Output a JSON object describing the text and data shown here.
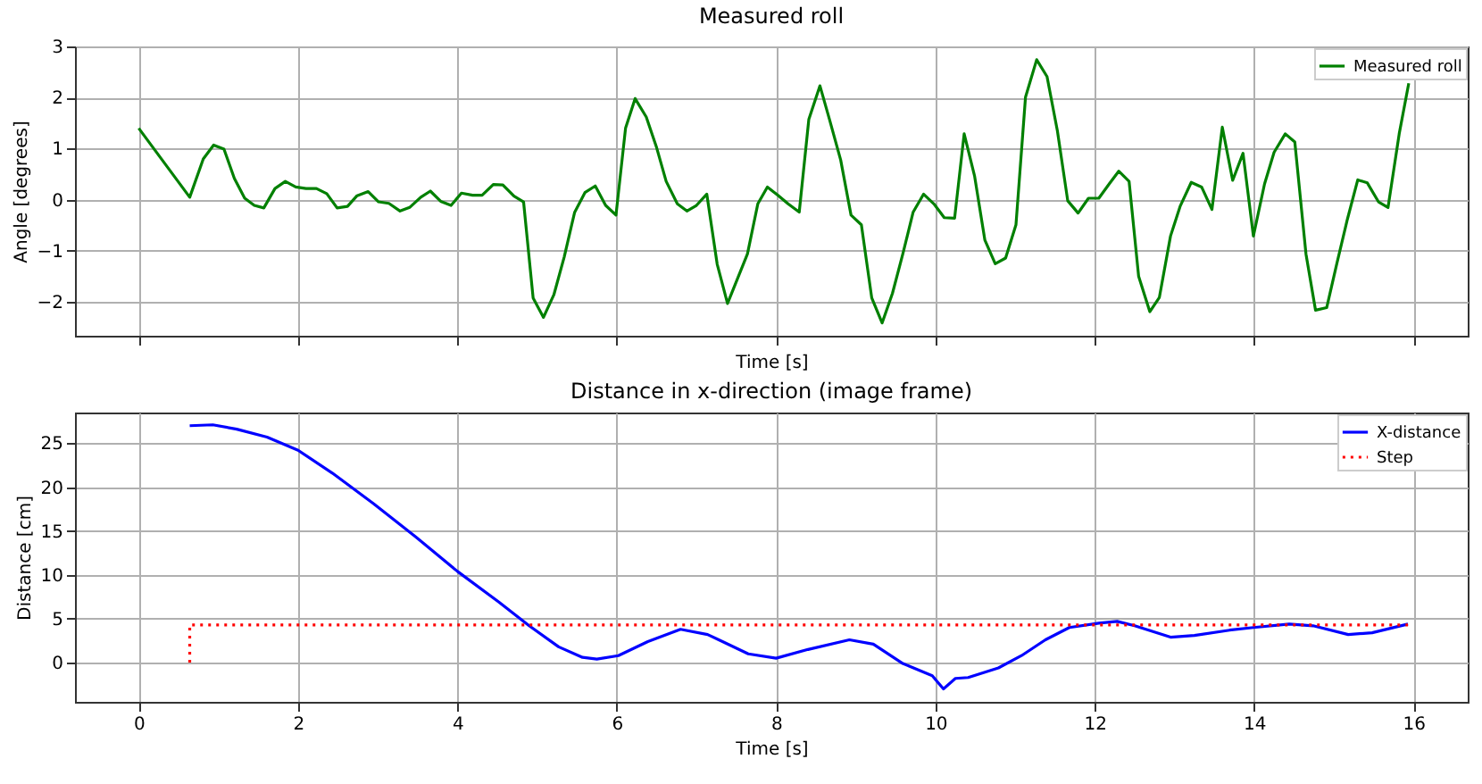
{
  "chart_data": [
    {
      "type": "line",
      "title": "Measured roll",
      "xlabel": "Time [s]",
      "ylabel": "Angle [degrees]",
      "xlim": [
        -0.8,
        16.68
      ],
      "ylim": [
        -2.66,
        3
      ],
      "xticks": [
        0,
        2,
        4,
        6,
        8,
        10,
        12,
        14,
        16
      ],
      "yticks": [
        -2,
        -1,
        0,
        1,
        2,
        3
      ],
      "tick_labels": "y",
      "grid": true,
      "legend": "top right",
      "marker": "none",
      "series": [
        {
          "name": "Measured roll",
          "color": "#008000",
          "line_style": "solid",
          "x": [
            0,
            0.64,
            0.81,
            0.94,
            1.07,
            1.2,
            1.33,
            1.45,
            1.57,
            1.71,
            1.84,
            1.97,
            2.1,
            2.23,
            2.36,
            2.49,
            2.62,
            2.74,
            2.88,
            3.01,
            3.14,
            3.28,
            3.4,
            3.54,
            3.66,
            3.79,
            3.92,
            4.05,
            4.19,
            4.31,
            4.45,
            4.57,
            4.71,
            4.83,
            4.95,
            5.08,
            5.21,
            5.34,
            5.47,
            5.6,
            5.73,
            5.86,
            5.99,
            6.11,
            6.23,
            6.37,
            6.5,
            6.62,
            6.76,
            6.88,
            7.0,
            7.13,
            7.26,
            7.39,
            7.64,
            7.77,
            7.89,
            8.02,
            8.15,
            8.29,
            8.41,
            8.55,
            8.67,
            8.81,
            8.94,
            9.07,
            9.2,
            9.33,
            9.46,
            9.59,
            9.72,
            9.85,
            9.98,
            10.11,
            10.24,
            10.36,
            10.49,
            10.62,
            10.75,
            10.88,
            11.01,
            11.13,
            11.27,
            11.4,
            11.53,
            11.66,
            11.79,
            11.92,
            12.05,
            12.18,
            12.3,
            12.43,
            12.55,
            12.69,
            12.81,
            12.95,
            13.07,
            13.21,
            13.34,
            13.47,
            13.6,
            13.73,
            13.86,
            13.99,
            14.13,
            14.25,
            14.39,
            14.51,
            14.65,
            14.77,
            14.91,
            15.04,
            15.17,
            15.3,
            15.42,
            15.56,
            15.68,
            15.82,
            15.94
          ],
          "values": [
            1.4,
            0.05,
            0.8,
            1.07,
            0.99,
            0.42,
            0.03,
            -0.11,
            -0.16,
            0.22,
            0.36,
            0.25,
            0.22,
            0.22,
            0.12,
            -0.16,
            -0.13,
            0.08,
            0.16,
            -0.04,
            -0.07,
            -0.22,
            -0.15,
            0.05,
            0.17,
            -0.03,
            -0.11,
            0.13,
            0.09,
            0.09,
            0.3,
            0.29,
            0.07,
            -0.04,
            -1.92,
            -2.3,
            -1.86,
            -1.12,
            -0.25,
            0.14,
            0.27,
            -0.11,
            -0.3,
            1.4,
            1.98,
            1.62,
            1.02,
            0.36,
            -0.08,
            -0.22,
            -0.11,
            0.11,
            -1.26,
            -2.03,
            -1.06,
            -0.08,
            0.25,
            0.09,
            -0.08,
            -0.24,
            1.57,
            2.23,
            1.57,
            0.78,
            -0.3,
            -0.49,
            -1.92,
            -2.41,
            -1.83,
            -1.06,
            -0.24,
            0.11,
            -0.08,
            -0.35,
            -0.36,
            1.29,
            0.47,
            -0.79,
            -1.25,
            -1.14,
            -0.49,
            2.01,
            2.74,
            2.41,
            1.35,
            -0.02,
            -0.26,
            0.03,
            0.03,
            0.31,
            0.56,
            0.36,
            -1.5,
            -2.19,
            -1.91,
            -0.71,
            -0.13,
            0.34,
            0.25,
            -0.19,
            1.42,
            0.38,
            0.91,
            -0.71,
            0.31,
            0.93,
            1.29,
            1.13,
            -1.06,
            -2.16,
            -2.11,
            -1.23,
            -0.38,
            0.39,
            0.33,
            -0.04,
            -0.15,
            1.29,
            2.28
          ]
        }
      ]
    },
    {
      "type": "line",
      "title": "Distance in x-direction (image frame)",
      "xlabel": "Time [s]",
      "ylabel": "Distance [cm]",
      "xlim": [
        -0.8,
        16.68
      ],
      "ylim": [
        -4.47,
        28.5
      ],
      "xticks": [
        0,
        2,
        4,
        6,
        8,
        10,
        12,
        14,
        16
      ],
      "yticks": [
        0,
        5,
        10,
        15,
        20,
        25
      ],
      "grid": true,
      "legend": "top right",
      "marker": "none",
      "series": [
        {
          "name": "X-distance",
          "color": "#0000ff",
          "line_style": "solid",
          "x": [
            0.64,
            0.93,
            1.23,
            1.61,
            2.0,
            2.43,
            2.95,
            3.48,
            4.0,
            4.52,
            4.9,
            5.27,
            5.57,
            5.75,
            6.02,
            6.39,
            6.8,
            7.14,
            7.28,
            7.65,
            8.0,
            8.4,
            8.92,
            9.22,
            9.59,
            9.96,
            10.1,
            10.25,
            10.41,
            10.79,
            11.08,
            11.38,
            11.68,
            12.05,
            12.28,
            12.5,
            12.95,
            13.25,
            13.69,
            13.99,
            14.44,
            14.74,
            15.18,
            15.48,
            15.93
          ],
          "values": [
            27.0,
            27.1,
            26.6,
            25.7,
            24.2,
            21.6,
            18.1,
            14.3,
            10.4,
            6.9,
            4.2,
            1.8,
            0.6,
            0.4,
            0.8,
            2.4,
            3.8,
            3.2,
            2.6,
            1.0,
            0.5,
            1.5,
            2.6,
            2.1,
            -0.1,
            -1.5,
            -3.0,
            -1.8,
            -1.7,
            -0.6,
            0.8,
            2.6,
            4.0,
            4.5,
            4.7,
            4.2,
            2.9,
            3.1,
            3.7,
            4.0,
            4.4,
            4.2,
            3.2,
            3.4,
            4.4
          ]
        },
        {
          "name": "Step",
          "color": "#ff0000",
          "line_style": "dotted",
          "x": [
            0.64,
            0.64,
            15.93
          ],
          "values": [
            0,
            4.3,
            4.3
          ]
        }
      ]
    }
  ]
}
